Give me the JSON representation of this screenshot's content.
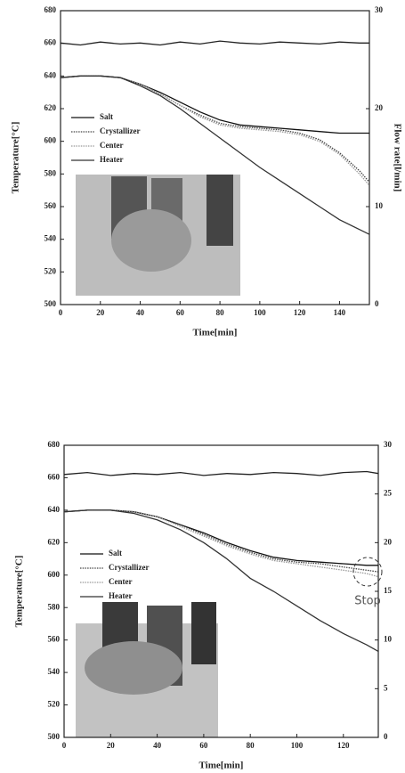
{
  "chart_data": [
    {
      "type": "line",
      "x_label": "Time[min]",
      "y_label": "Temperature[°C]",
      "y2_label": "Flow rate[l/min]",
      "x": [
        0,
        10,
        20,
        30,
        40,
        50,
        60,
        70,
        80,
        90,
        100,
        110,
        120,
        130,
        140,
        150,
        155
      ],
      "xlim": [
        0,
        155
      ],
      "xticks": [
        0,
        20,
        40,
        60,
        80,
        100,
        120,
        140
      ],
      "ylim": [
        500,
        680
      ],
      "yticks": [
        500,
        520,
        540,
        560,
        580,
        600,
        620,
        640,
        660,
        680
      ],
      "y2lim": [
        0,
        30
      ],
      "y2ticks": [
        0,
        10,
        20,
        30
      ],
      "series": [
        {
          "name": "Salt",
          "color": "#111111",
          "linestyle": "solid",
          "values": [
            639,
            640,
            640,
            639,
            635,
            630,
            624,
            618,
            613,
            610,
            609,
            608,
            607,
            606,
            605,
            605,
            605
          ]
        },
        {
          "name": "Crystallizer",
          "color": "#444444",
          "linestyle": "dotted",
          "values": [
            639,
            640,
            640,
            639,
            635,
            629,
            622,
            616,
            611,
            609,
            608,
            607,
            605,
            601,
            593,
            582,
            575
          ]
        },
        {
          "name": "Center",
          "color": "#999999",
          "linestyle": "dotted",
          "values": [
            639,
            640,
            640,
            639,
            635,
            629,
            622,
            615,
            610,
            608,
            607,
            606,
            604,
            600,
            592,
            580,
            573
          ]
        },
        {
          "name": "Heater",
          "color": "#333333",
          "linestyle": "solid",
          "values": [
            639,
            640,
            640,
            639,
            634,
            628,
            620,
            611,
            602,
            593,
            584,
            576,
            568,
            560,
            552,
            546,
            543
          ]
        },
        {
          "axis": "y2",
          "color": "#222222",
          "linestyle": "solid",
          "values": [
            26.7,
            26.5,
            26.8,
            26.6,
            26.7,
            26.5,
            26.8,
            26.6,
            26.9,
            26.7,
            26.6,
            26.8,
            26.7,
            26.6,
            26.8,
            26.7,
            26.7
          ]
        }
      ]
    },
    {
      "type": "line",
      "x_label": "Time[min]",
      "y_label": "Temperature[°C]",
      "annotation": "Stop",
      "x": [
        0,
        10,
        20,
        30,
        40,
        50,
        60,
        70,
        80,
        90,
        100,
        110,
        120,
        130,
        135
      ],
      "xlim": [
        0,
        135
      ],
      "xticks": [
        0,
        20,
        40,
        60,
        80,
        100,
        120
      ],
      "ylim": [
        500,
        680
      ],
      "yticks": [
        500,
        520,
        540,
        560,
        580,
        600,
        620,
        640,
        660,
        680
      ],
      "y2lim": [
        0,
        30
      ],
      "y2ticks": [
        0,
        5,
        10,
        15,
        20,
        25,
        30
      ],
      "series": [
        {
          "name": "Salt",
          "color": "#111111",
          "linestyle": "solid",
          "values": [
            639,
            640,
            640,
            639,
            636,
            631,
            626,
            620,
            615,
            611,
            609,
            608,
            607,
            606,
            606
          ]
        },
        {
          "name": "Crystallizer",
          "color": "#444444",
          "linestyle": "dotted",
          "values": [
            639,
            640,
            640,
            639,
            636,
            631,
            625,
            619,
            614,
            610,
            608,
            607,
            605,
            603,
            602
          ]
        },
        {
          "name": "Center",
          "color": "#999999",
          "linestyle": "dotted",
          "values": [
            639,
            640,
            640,
            639,
            636,
            630,
            624,
            618,
            613,
            609,
            607,
            605,
            603,
            601,
            599
          ]
        },
        {
          "name": "Heater",
          "color": "#333333",
          "linestyle": "solid",
          "values": [
            639,
            640,
            640,
            638,
            634,
            628,
            620,
            610,
            598,
            590,
            581,
            572,
            564,
            557,
            553
          ]
        },
        {
          "axis": "y2",
          "color": "#222222",
          "linestyle": "solid",
          "values": [
            27.0,
            27.2,
            26.9,
            27.1,
            27.0,
            27.2,
            26.9,
            27.1,
            27.0,
            27.2,
            27.1,
            26.9,
            27.2,
            27.3,
            27.1
          ]
        }
      ]
    }
  ]
}
